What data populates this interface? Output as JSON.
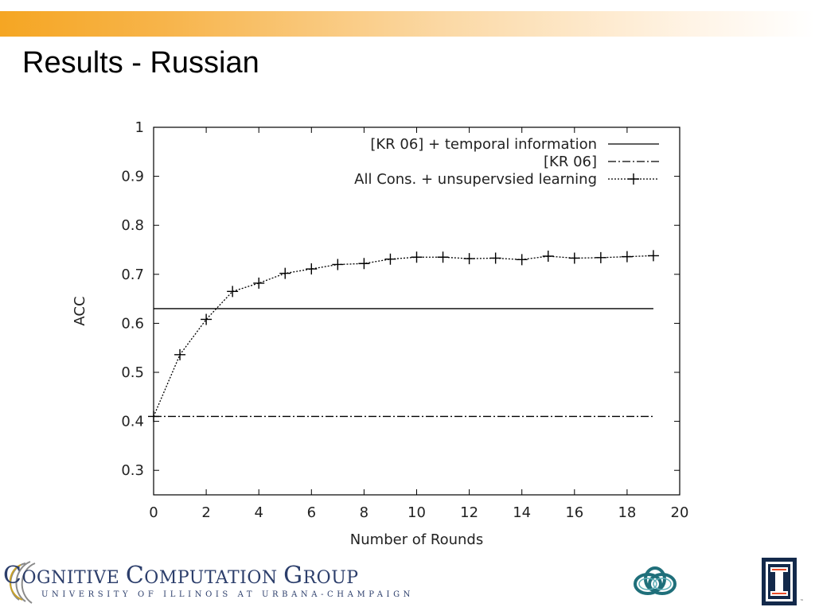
{
  "slide": {
    "title": "Results - Russian",
    "footer": {
      "group_line_c": "C",
      "group_line_rest1": "OGNITIVE ",
      "group_line_c2": "C",
      "group_line_rest2": "OMPUTATION ",
      "group_line_g": "G",
      "group_line_rest3": "ROUP",
      "university": "UNIVERSITY OF ILLINOIS AT URBANA-CHAMPAIGN",
      "tm": "™"
    },
    "colors": {
      "banner": "#f5a623",
      "logo_blue": "#2c3e6b",
      "uiuc_blue": "#13294b"
    }
  },
  "chart_data": {
    "type": "line",
    "xlabel": "Number of Rounds",
    "ylabel": "ACC",
    "xlim": [
      0,
      20
    ],
    "ylim": [
      0.25,
      1.0
    ],
    "xticks": [
      0,
      2,
      4,
      6,
      8,
      10,
      12,
      14,
      16,
      18,
      20
    ],
    "yticks": [
      0.3,
      0.4,
      0.5,
      0.6,
      0.7,
      0.8,
      0.9,
      1
    ],
    "ytick_labels": [
      "0.3",
      "0.4",
      "0.5",
      "0.6",
      "0.7",
      "0.8",
      "0.9",
      "1"
    ],
    "grid": false,
    "legend_position": "top-right",
    "series": [
      {
        "name": "[KR 06] + temporal information",
        "style": "solid",
        "x": [
          0,
          19
        ],
        "y": [
          0.63,
          0.63
        ]
      },
      {
        "name": "[KR 06]",
        "style": "dash-dot",
        "x": [
          0,
          19
        ],
        "y": [
          0.41,
          0.41
        ]
      },
      {
        "name": "All Cons. + unsupervsied learning",
        "style": "dotted-plus",
        "x": [
          0,
          1,
          2,
          3,
          4,
          5,
          6,
          7,
          8,
          9,
          10,
          11,
          12,
          13,
          14,
          15,
          16,
          17,
          18,
          19
        ],
        "y": [
          0.41,
          0.536,
          0.608,
          0.665,
          0.682,
          0.702,
          0.711,
          0.72,
          0.722,
          0.731,
          0.735,
          0.735,
          0.732,
          0.733,
          0.73,
          0.737,
          0.733,
          0.734,
          0.736,
          0.738
        ]
      }
    ]
  }
}
